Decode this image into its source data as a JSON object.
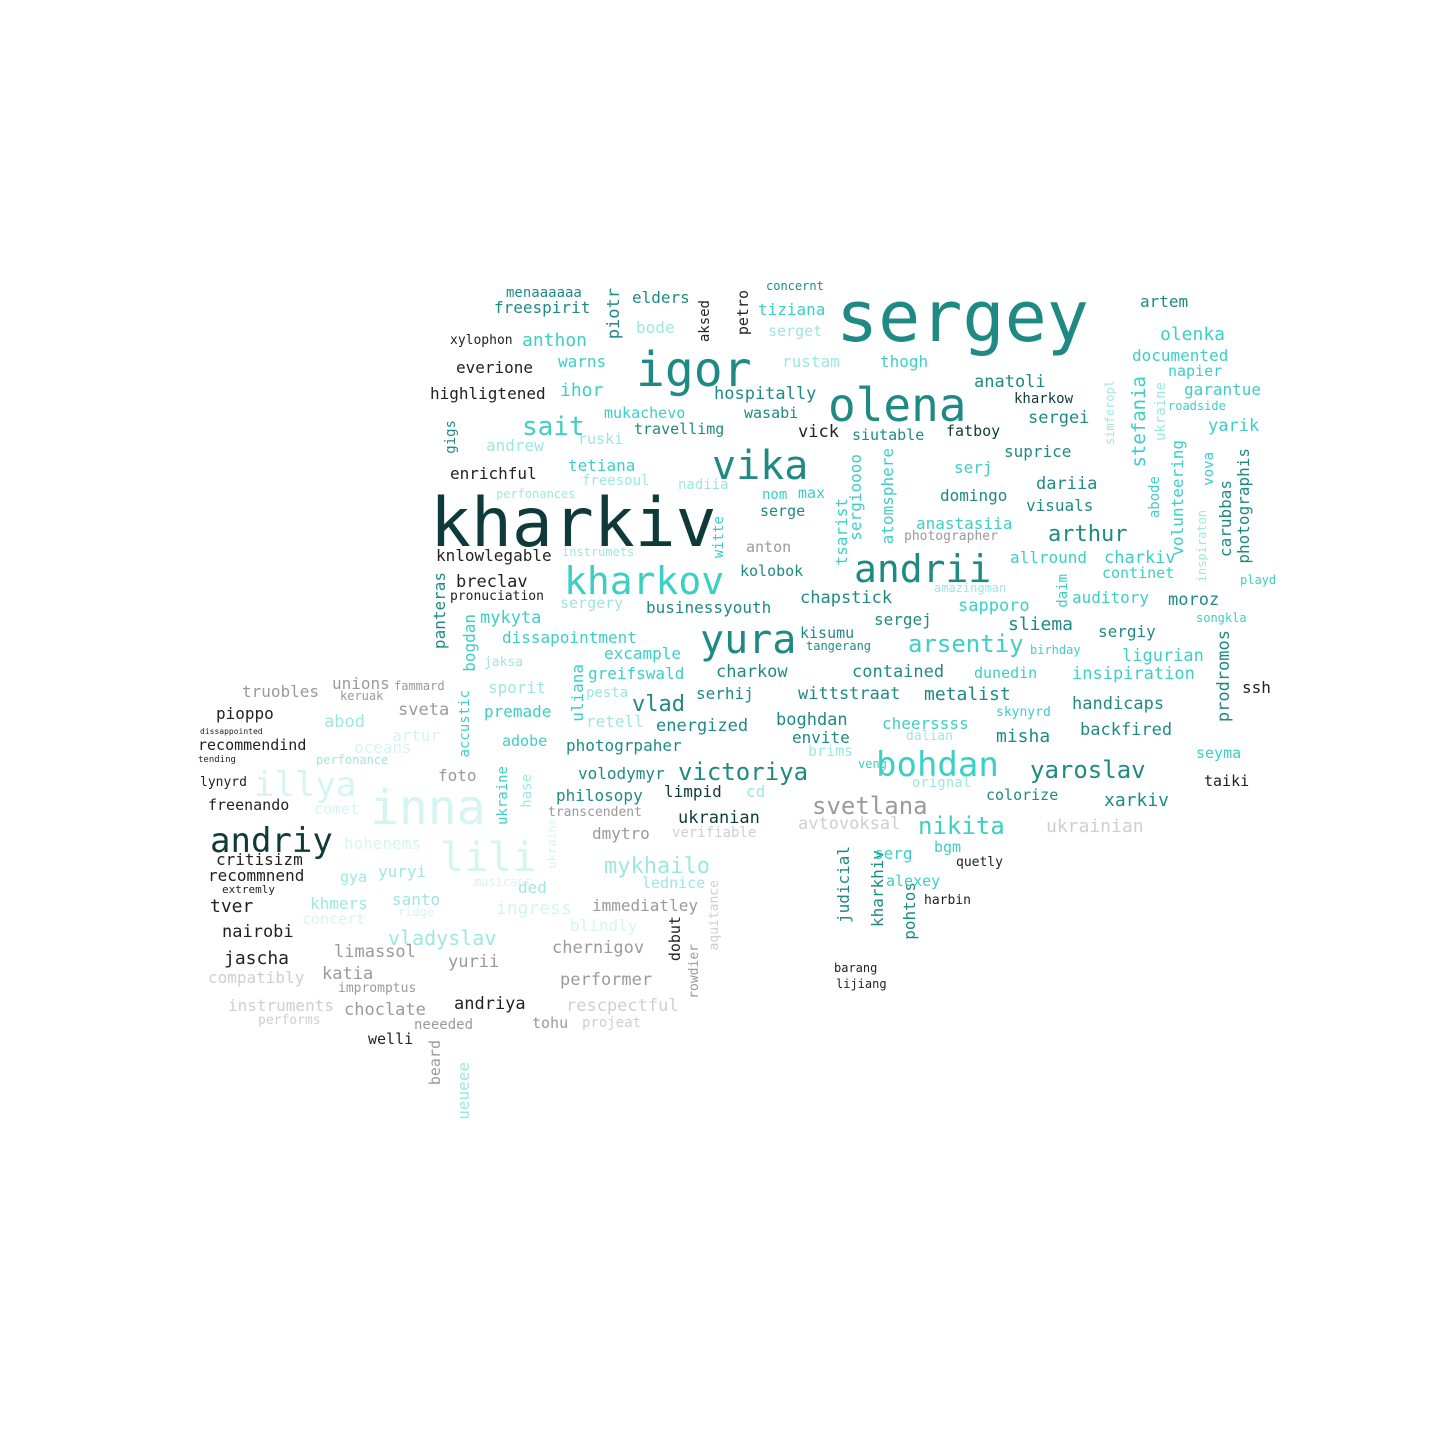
{
  "words": [
    "sergey",
    "kharkiv",
    "igor",
    "olena",
    "kharkov",
    "andrii",
    "vika",
    "yura",
    "inna",
    "lili",
    "andriy",
    "illya",
    "bohdan",
    "victoriya",
    "yaroslav",
    "svetlana",
    "nikita",
    "arsentiy",
    "sait",
    "ihor",
    "anthon",
    "elders",
    "freespirit",
    "menaaaaaa",
    "tiziana",
    "serget",
    "artem",
    "olenka",
    "documented",
    "napier",
    "garantue",
    "roadside",
    "yarik",
    "anatoli",
    "kharkow",
    "sergei",
    "stefania",
    "ukraine",
    "simferopl",
    "fatboy",
    "suprice",
    "dariia",
    "visuals",
    "arthur",
    "charkiv",
    "continet",
    "auditory",
    "moroz",
    "sliema",
    "sergiy",
    "ligurian",
    "insipiration",
    "handicaps",
    "backfired",
    "seyma",
    "taiki",
    "xarkiv",
    "ukrainian",
    "colorize",
    "misha",
    "metalist",
    "dunedin",
    "skynyrd",
    "cheerssss",
    "contained",
    "charkow",
    "wittstraat",
    "boghdan",
    "energized",
    "envite",
    "brims",
    "vlad",
    "premade",
    "adobe",
    "photogrpaher",
    "volodymyr",
    "philosopy",
    "limpid",
    "ukranian",
    "avtovoksal",
    "dmytro",
    "verifiable",
    "mykhailo",
    "lednice",
    "immediatley",
    "ingress",
    "vladyslav",
    "chernigov",
    "yurii",
    "performer",
    "rescpectful",
    "andriya",
    "choclate",
    "tohu",
    "projeat",
    "neeeded",
    "welli",
    "beard",
    "ueueee",
    "instruments",
    "performs",
    "impromptus",
    "katia",
    "limassol",
    "compatibly",
    "jascha",
    "nairobi",
    "tver",
    "khmers",
    "santo",
    "yuryi",
    "gya",
    "recommnend",
    "critisizm",
    "freenando",
    "lynyrd",
    "foto",
    "hohenems",
    "comet",
    "oceans",
    "artur",
    "recommendind",
    "pioppo",
    "abod",
    "sveta",
    "truobles",
    "keruak",
    "unions",
    "fammard",
    "highligtened",
    "everione",
    "xylophon",
    "enrichful",
    "knlowlegable",
    "andrew",
    "warns",
    "ruski",
    "mukachevo",
    "travellimg",
    "hospitally",
    "wasabi",
    "vick",
    "siutable",
    "tetiana",
    "freesoul",
    "nadiia",
    "max",
    "nom",
    "serge",
    "anton",
    "kolobok",
    "chapstick",
    "sergej",
    "kisumu",
    "tangerang",
    "excample",
    "greifswald",
    "dissapointment",
    "mykyta",
    "businessyouth",
    "sergery",
    "breclav",
    "pronuciation",
    "sporit",
    "jaksa",
    "uliana",
    "pesta",
    "retell",
    "serhij",
    "anastasiia",
    "photographer",
    "allround",
    "domingo",
    "serj",
    "atomsphere",
    "sergioooo",
    "tsarist",
    "volunteering",
    "abode",
    "carubbas",
    "photographis",
    "prodromos",
    "panteras",
    "bogdan",
    "accustic",
    "ukraine",
    "piotr",
    "bode",
    "petro",
    "aksed",
    "rustam",
    "thogh",
    "concernt",
    "gigs",
    "witte",
    "playd",
    "songkla",
    "daim",
    "vova",
    "inspiraton",
    "ssh",
    "quetly",
    "harbin",
    "kharkhiv",
    "pohtos",
    "judicial",
    "alexey",
    "serg",
    "bgm",
    "orignal",
    "dalian",
    "veng",
    "barang",
    "lijiang",
    "dobut",
    "ded",
    "rowdier",
    "aquitance",
    "blindly",
    "musicant",
    "transcendent",
    "perfonances",
    "instrumets",
    "sapporo",
    "amazingman",
    "birhday",
    "cd",
    "hase",
    "ukraine",
    "concert",
    "perfonance",
    "ridge",
    "tending",
    "dissappointed",
    "stiy",
    "extremly"
  ],
  "colors": {
    "dark": "#0f3a3a",
    "medium": "#1f8a84",
    "bright": "#3ccfc4",
    "light": "#9ee7e1",
    "pale": "#d5f5f2",
    "gray": "#9a9a9a",
    "lightgray": "#cfcfcf",
    "black": "#222222"
  }
}
